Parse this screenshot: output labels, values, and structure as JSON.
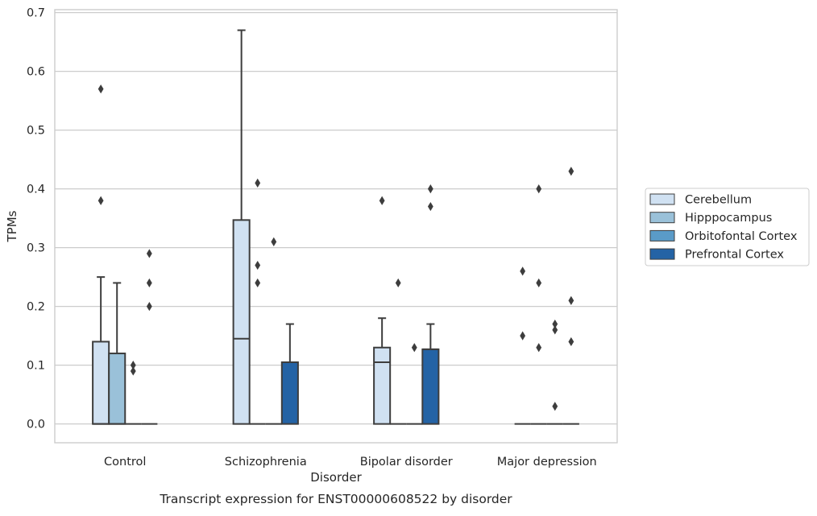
{
  "chart_data": {
    "type": "box",
    "xlabel": "Disorder",
    "ylabel": "TPMs",
    "caption": "Transcript expression for ENST00000608522 by disorder",
    "ylim": [
      -0.032,
      0.705
    ],
    "yticks": [
      "0.0",
      "0.1",
      "0.2",
      "0.3",
      "0.4",
      "0.5",
      "0.6",
      "0.7"
    ],
    "grid": "horizontal",
    "legend_position": "right",
    "categories": [
      "Control",
      "Schizophrenia",
      "Bipolar disorder",
      "Major depression"
    ],
    "series": [
      {
        "name": "Cerebellum",
        "color": "#d0e1f2",
        "boxes": [
          {
            "q1": 0.0,
            "median": 0.0,
            "q3": 0.14,
            "whisker_low": 0.0,
            "whisker_high": 0.25,
            "outliers": [
              0.57,
              0.38
            ]
          },
          {
            "q1": 0.0,
            "median": 0.145,
            "q3": 0.347,
            "whisker_low": 0.0,
            "whisker_high": 0.67,
            "outliers": []
          },
          {
            "q1": 0.0,
            "median": 0.105,
            "q3": 0.13,
            "whisker_low": 0.0,
            "whisker_high": 0.18,
            "outliers": [
              0.38
            ]
          },
          {
            "q1": 0.0,
            "median": 0.0,
            "q3": 0.0,
            "whisker_low": 0.0,
            "whisker_high": 0.0,
            "outliers": [
              0.26,
              0.15
            ]
          }
        ]
      },
      {
        "name": "Hipppocampus",
        "color": "#9ac1d9",
        "boxes": [
          {
            "q1": 0.0,
            "median": 0.0,
            "q3": 0.12,
            "whisker_low": 0.0,
            "whisker_high": 0.24,
            "outliers": []
          },
          {
            "q1": 0.0,
            "median": 0.0,
            "q3": 0.0,
            "whisker_low": 0.0,
            "whisker_high": 0.0,
            "outliers": [
              0.41,
              0.27,
              0.24
            ]
          },
          {
            "q1": 0.0,
            "median": 0.0,
            "q3": 0.0,
            "whisker_low": 0.0,
            "whisker_high": 0.0,
            "outliers": [
              0.24
            ]
          },
          {
            "q1": 0.0,
            "median": 0.0,
            "q3": 0.0,
            "whisker_low": 0.0,
            "whisker_high": 0.0,
            "outliers": [
              0.4,
              0.24,
              0.13
            ]
          }
        ]
      },
      {
        "name": "Orbitofontal Cortex",
        "color": "#5a9bc8",
        "boxes": [
          {
            "q1": 0.0,
            "median": 0.0,
            "q3": 0.0,
            "whisker_low": 0.0,
            "whisker_high": 0.0,
            "outliers": [
              0.1,
              0.09
            ]
          },
          {
            "q1": 0.0,
            "median": 0.0,
            "q3": 0.0,
            "whisker_low": 0.0,
            "whisker_high": 0.0,
            "outliers": [
              0.31
            ]
          },
          {
            "q1": 0.0,
            "median": 0.0,
            "q3": 0.0,
            "whisker_low": 0.0,
            "whisker_high": 0.0,
            "outliers": [
              0.13
            ]
          },
          {
            "q1": 0.0,
            "median": 0.0,
            "q3": 0.0,
            "whisker_low": 0.0,
            "whisker_high": 0.0,
            "outliers": [
              0.17,
              0.16,
              0.03
            ]
          }
        ]
      },
      {
        "name": "Prefrontal Cortex",
        "color": "#2463a5",
        "boxes": [
          {
            "q1": 0.0,
            "median": 0.0,
            "q3": 0.0,
            "whisker_low": 0.0,
            "whisker_high": 0.0,
            "outliers": [
              0.29,
              0.24,
              0.2
            ]
          },
          {
            "q1": 0.0,
            "median": 0.105,
            "q3": 0.105,
            "whisker_low": 0.0,
            "whisker_high": 0.17,
            "outliers": []
          },
          {
            "q1": 0.0,
            "median": 0.127,
            "q3": 0.127,
            "whisker_low": 0.0,
            "whisker_high": 0.17,
            "outliers": [
              0.4,
              0.37
            ]
          },
          {
            "q1": 0.0,
            "median": 0.0,
            "q3": 0.0,
            "whisker_low": 0.0,
            "whisker_high": 0.0,
            "outliers": [
              0.43,
              0.21,
              0.14
            ]
          }
        ]
      }
    ]
  }
}
